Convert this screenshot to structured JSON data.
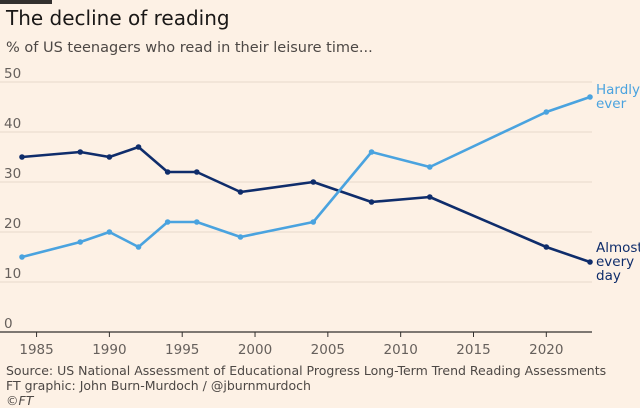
{
  "title": "The decline of reading",
  "subtitle": "% of US teenagers who read in their leisure time...",
  "source_lines": [
    "Source: US National Assessment of Educational Progress Long-Term Trend Reading Assessments",
    "FT graphic: John Burn-Murdoch / @jburnmurdoch",
    "©FT"
  ],
  "colors": {
    "background": "#fdf1e5",
    "hardly_ever": "#4aa3df",
    "almost_every_day": "#0f2d6b",
    "grid": "#e6d9cc",
    "axis": "#33302e"
  },
  "chart_data": {
    "type": "line",
    "title": "The decline of reading",
    "subtitle": "% of US teenagers who read in their leisure time...",
    "xlabel": "",
    "ylabel": "",
    "xlim": [
      1984,
      2023
    ],
    "ylim": [
      0,
      50
    ],
    "x_ticks": [
      1985,
      1990,
      1995,
      2000,
      2005,
      2010,
      2015,
      2020
    ],
    "y_ticks": [
      0,
      10,
      20,
      30,
      40,
      50
    ],
    "grid": true,
    "series": [
      {
        "name": "Almost every day",
        "label_lines": [
          "Almost",
          "every",
          "day"
        ],
        "color": "#0f2d6b",
        "x": [
          1984,
          1988,
          1990,
          1992,
          1994,
          1996,
          1999,
          2004,
          2008,
          2012,
          2020,
          2023
        ],
        "y": [
          35,
          36,
          35,
          37,
          32,
          32,
          28,
          30,
          26,
          27,
          17,
          14
        ]
      },
      {
        "name": "Hardly ever",
        "label_lines": [
          "Hardly",
          "ever"
        ],
        "color": "#4aa3df",
        "x": [
          1984,
          1988,
          1990,
          1992,
          1994,
          1996,
          1999,
          2004,
          2008,
          2012,
          2020,
          2023
        ],
        "y": [
          15,
          18,
          20,
          17,
          22,
          22,
          19,
          22,
          36,
          33,
          44,
          47
        ]
      }
    ]
  }
}
